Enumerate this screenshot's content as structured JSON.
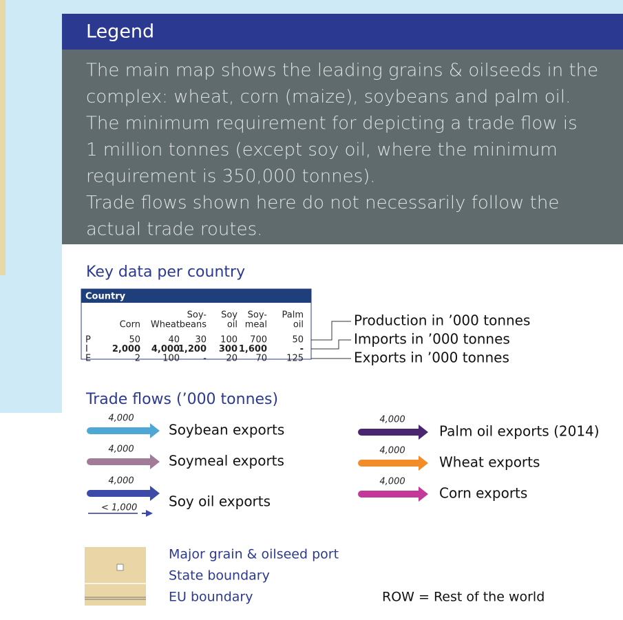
{
  "legend": {
    "title": "Legend",
    "description": [
      "The main map shows the leading grains & oilseeds in the",
      "complex: wheat, corn (maize), soybeans and palm oil.",
      "The minimum requirement for depicting a trade flow is",
      "1 million tonnes (except soy oil, where the minimum",
      "requirement is 350,000 tonnes).",
      "Trade flows shown here do not necessarily follow the",
      "actual trade routes."
    ]
  },
  "key_data": {
    "title": "Key data per country",
    "table": {
      "header": "Country",
      "columns": [
        [
          "Corn"
        ],
        [
          "Wheat"
        ],
        [
          "Soy-",
          "beans"
        ],
        [
          "Soy",
          "oil"
        ],
        [
          "Soy-",
          "meal"
        ],
        [
          "Palm",
          "oil"
        ]
      ],
      "rows": [
        {
          "label": "P",
          "values": [
            "50",
            "40",
            "30",
            "100",
            "700",
            "50"
          ]
        },
        {
          "label": "I",
          "values": [
            "2,000",
            "4,000",
            "1,200",
            "300",
            "1,600",
            "-"
          ]
        },
        {
          "label": "E",
          "values": [
            "2",
            "100",
            "-",
            "20",
            "70",
            "125"
          ]
        }
      ]
    },
    "annotations": [
      "Production in ’000 tonnes",
      "Imports in ’000 tonnes",
      "Exports in ’000 tonnes"
    ]
  },
  "trade_flows": {
    "title": "Trade flows (’000 tonnes)",
    "items": [
      {
        "amount": "4,000",
        "name": "Soybean exports"
      },
      {
        "amount": "4,000",
        "name": "Soymeal exports"
      },
      {
        "amount": "4,000",
        "name": "Soy oil exports"
      },
      {
        "amount": "4,000",
        "name": "Palm oil exports (2014)"
      },
      {
        "amount": "4,000",
        "name": "Wheat exports"
      },
      {
        "amount": "4,000",
        "name": "Corn exports"
      }
    ],
    "small_amount": "< 1,000"
  },
  "symbols": [
    "Major grain & oilseed port",
    "State boundary",
    "EU boundary"
  ],
  "note": "ROW = Rest of the world"
}
